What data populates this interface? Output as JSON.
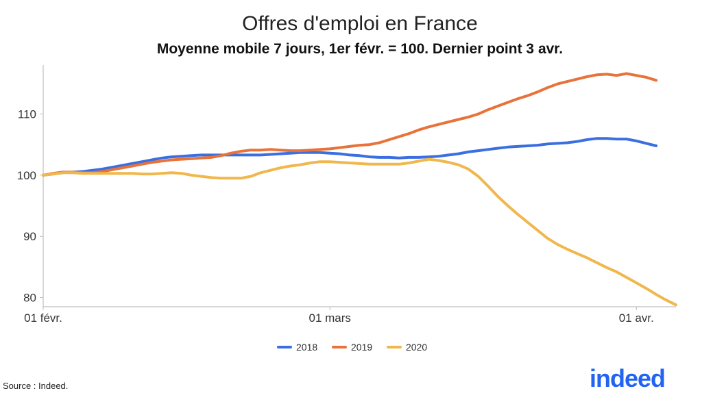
{
  "chart_data": {
    "type": "line",
    "title": "Offres d'emploi en France",
    "subtitle": "Moyenne mobile 7 jours, 1er févr. = 100. Dernier point 3 avr.",
    "xlabel": "",
    "ylabel": "",
    "x_ticks": [
      "01 févr.",
      "01 mars",
      "01 avr."
    ],
    "y_ticks": [
      80,
      90,
      100,
      110
    ],
    "ylim": [
      78.5,
      118
    ],
    "grid": false,
    "legend_position": "bottom",
    "x_unit": "day of year, 1 = 1 Feb",
    "series": [
      {
        "name": "2018",
        "color": "#3b6fe0",
        "points": [
          [
            0,
            100
          ],
          [
            1,
            100.2
          ],
          [
            2,
            100.4
          ],
          [
            3,
            100.5
          ],
          [
            4,
            100.6
          ],
          [
            5,
            100.8
          ],
          [
            6,
            101
          ],
          [
            7,
            101.3
          ],
          [
            8,
            101.6
          ],
          [
            9,
            101.9
          ],
          [
            10,
            102.2
          ],
          [
            11,
            102.5
          ],
          [
            12,
            102.8
          ],
          [
            13,
            103
          ],
          [
            14,
            103.1
          ],
          [
            15,
            103.2
          ],
          [
            16,
            103.3
          ],
          [
            17,
            103.3
          ],
          [
            18,
            103.3
          ],
          [
            19,
            103.3
          ],
          [
            20,
            103.3
          ],
          [
            21,
            103.3
          ],
          [
            22,
            103.3
          ],
          [
            23,
            103.4
          ],
          [
            24,
            103.5
          ],
          [
            25,
            103.6
          ],
          [
            26,
            103.7
          ],
          [
            27,
            103.7
          ],
          [
            28,
            103.7
          ],
          [
            29,
            103.6
          ],
          [
            30,
            103.5
          ],
          [
            31,
            103.3
          ],
          [
            32,
            103.2
          ],
          [
            33,
            103
          ],
          [
            34,
            102.9
          ],
          [
            35,
            102.9
          ],
          [
            36,
            102.8
          ],
          [
            37,
            102.9
          ],
          [
            38,
            102.9
          ],
          [
            39,
            103
          ],
          [
            40,
            103.1
          ],
          [
            41,
            103.3
          ],
          [
            42,
            103.5
          ],
          [
            43,
            103.8
          ],
          [
            44,
            104
          ],
          [
            45,
            104.2
          ],
          [
            46,
            104.4
          ],
          [
            47,
            104.6
          ],
          [
            48,
            104.7
          ],
          [
            49,
            104.8
          ],
          [
            50,
            104.9
          ],
          [
            51,
            105.1
          ],
          [
            52,
            105.2
          ],
          [
            53,
            105.3
          ],
          [
            54,
            105.5
          ],
          [
            55,
            105.8
          ],
          [
            56,
            106
          ],
          [
            57,
            106
          ],
          [
            58,
            105.9
          ],
          [
            59,
            105.9
          ],
          [
            60,
            105.6
          ],
          [
            61,
            105.2
          ],
          [
            62,
            104.8
          ]
        ]
      },
      {
        "name": "2019",
        "color": "#e8733a",
        "points": [
          [
            0,
            100
          ],
          [
            1,
            100.3
          ],
          [
            2,
            100.5
          ],
          [
            3,
            100.5
          ],
          [
            4,
            100.4
          ],
          [
            5,
            100.4
          ],
          [
            6,
            100.6
          ],
          [
            7,
            100.9
          ],
          [
            8,
            101.2
          ],
          [
            9,
            101.5
          ],
          [
            10,
            101.8
          ],
          [
            11,
            102.1
          ],
          [
            12,
            102.3
          ],
          [
            13,
            102.5
          ],
          [
            14,
            102.6
          ],
          [
            15,
            102.7
          ],
          [
            16,
            102.8
          ],
          [
            17,
            102.9
          ],
          [
            18,
            103.2
          ],
          [
            19,
            103.6
          ],
          [
            20,
            103.9
          ],
          [
            21,
            104.1
          ],
          [
            22,
            104.1
          ],
          [
            23,
            104.2
          ],
          [
            24,
            104.1
          ],
          [
            25,
            104
          ],
          [
            26,
            104
          ],
          [
            27,
            104.1
          ],
          [
            28,
            104.2
          ],
          [
            29,
            104.3
          ],
          [
            30,
            104.5
          ],
          [
            31,
            104.7
          ],
          [
            32,
            104.9
          ],
          [
            33,
            105
          ],
          [
            34,
            105.3
          ],
          [
            35,
            105.8
          ],
          [
            36,
            106.3
          ],
          [
            37,
            106.8
          ],
          [
            38,
            107.4
          ],
          [
            39,
            107.9
          ],
          [
            40,
            108.3
          ],
          [
            41,
            108.7
          ],
          [
            42,
            109.1
          ],
          [
            43,
            109.5
          ],
          [
            44,
            110
          ],
          [
            45,
            110.7
          ],
          [
            46,
            111.3
          ],
          [
            47,
            111.9
          ],
          [
            48,
            112.5
          ],
          [
            49,
            113
          ],
          [
            50,
            113.6
          ],
          [
            51,
            114.3
          ],
          [
            52,
            114.9
          ],
          [
            53,
            115.3
          ],
          [
            54,
            115.7
          ],
          [
            55,
            116.1
          ],
          [
            56,
            116.4
          ],
          [
            57,
            116.5
          ],
          [
            58,
            116.3
          ],
          [
            59,
            116.6
          ],
          [
            60,
            116.3
          ],
          [
            61,
            116
          ],
          [
            62,
            115.5
          ]
        ]
      },
      {
        "name": "2020",
        "color": "#f0b74c",
        "points": [
          [
            0,
            100
          ],
          [
            1,
            100.2
          ],
          [
            2,
            100.4
          ],
          [
            3,
            100.4
          ],
          [
            4,
            100.3
          ],
          [
            5,
            100.3
          ],
          [
            6,
            100.3
          ],
          [
            7,
            100.3
          ],
          [
            8,
            100.3
          ],
          [
            9,
            100.3
          ],
          [
            10,
            100.2
          ],
          [
            11,
            100.2
          ],
          [
            12,
            100.3
          ],
          [
            13,
            100.4
          ],
          [
            14,
            100.3
          ],
          [
            15,
            100
          ],
          [
            16,
            99.8
          ],
          [
            17,
            99.6
          ],
          [
            18,
            99.5
          ],
          [
            19,
            99.5
          ],
          [
            20,
            99.5
          ],
          [
            21,
            99.8
          ],
          [
            22,
            100.4
          ],
          [
            23,
            100.8
          ],
          [
            24,
            101.2
          ],
          [
            25,
            101.5
          ],
          [
            26,
            101.7
          ],
          [
            27,
            102
          ],
          [
            28,
            102.2
          ],
          [
            29,
            102.2
          ],
          [
            30,
            102.1
          ],
          [
            31,
            102
          ],
          [
            32,
            101.9
          ],
          [
            33,
            101.8
          ],
          [
            34,
            101.8
          ],
          [
            35,
            101.8
          ],
          [
            36,
            101.8
          ],
          [
            37,
            102
          ],
          [
            38,
            102.3
          ],
          [
            39,
            102.6
          ],
          [
            40,
            102.4
          ],
          [
            41,
            102.1
          ],
          [
            42,
            101.7
          ],
          [
            43,
            101
          ],
          [
            44,
            99.8
          ],
          [
            45,
            98.2
          ],
          [
            46,
            96.5
          ],
          [
            47,
            95
          ],
          [
            48,
            93.6
          ],
          [
            49,
            92.3
          ],
          [
            50,
            91
          ],
          [
            51,
            89.7
          ],
          [
            52,
            88.7
          ],
          [
            53,
            87.9
          ],
          [
            54,
            87.2
          ],
          [
            55,
            86.5
          ],
          [
            56,
            85.7
          ],
          [
            57,
            84.9
          ],
          [
            58,
            84.2
          ],
          [
            59,
            83.3
          ],
          [
            60,
            82.4
          ],
          [
            61,
            81.5
          ],
          [
            62,
            80.5
          ],
          [
            63,
            79.6
          ],
          [
            64,
            78.8
          ]
        ]
      }
    ]
  },
  "source": "Source : Indeed.",
  "brand": "indeed"
}
